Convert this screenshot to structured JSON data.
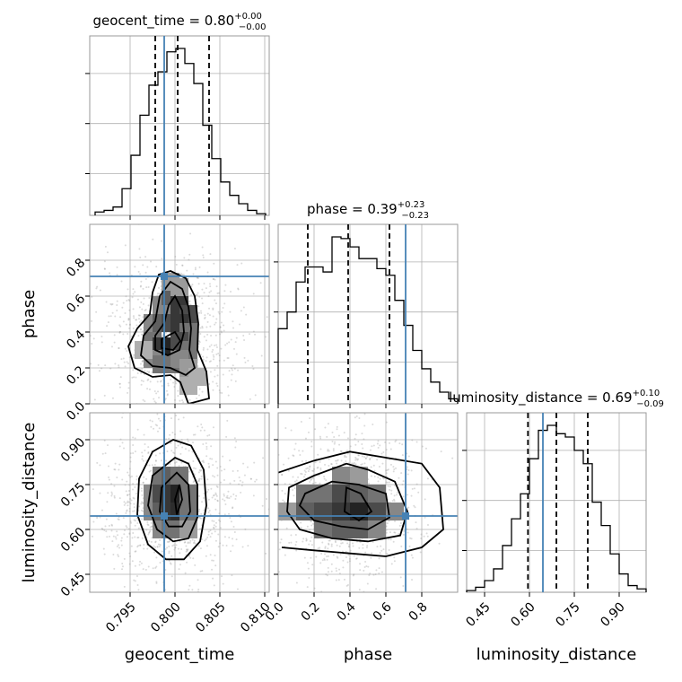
{
  "colors": {
    "truth": "#4682b4",
    "hist": "#000000",
    "grid": "#b0b0b0",
    "scatter": "#999999"
  },
  "chart_data": {
    "type": "corner",
    "parameters": [
      "geocent_time",
      "phase",
      "luminosity_distance"
    ],
    "truths": {
      "geocent_time": 0.7988,
      "phase": 0.71,
      "luminosity_distance": 0.645
    },
    "axes": {
      "geocent_time": {
        "range": [
          0.7905,
          0.8105
        ],
        "ticks": [
          0.795,
          0.8,
          0.805,
          0.81
        ],
        "tick_labels": [
          "0.795",
          "0.800",
          "0.805",
          "0.810"
        ]
      },
      "phase": {
        "range": [
          0.0,
          1.0
        ],
        "ticks": [
          0.0,
          0.2,
          0.4,
          0.6,
          0.8
        ],
        "tick_labels": [
          "0.0",
          "0.2",
          "0.4",
          "0.6",
          "0.8"
        ]
      },
      "luminosity_distance": {
        "range": [
          0.39,
          0.99
        ],
        "ticks": [
          0.45,
          0.6,
          0.75,
          0.9
        ],
        "tick_labels": [
          "0.45",
          "0.60",
          "0.75",
          "0.90"
        ]
      }
    },
    "diagonal": [
      {
        "param": "geocent_time",
        "title_main": "geocent_time = 0.80",
        "title_sup": "+0.00",
        "title_sub": "−0.00",
        "quantiles": [
          0.7978,
          0.8003,
          0.8038
        ],
        "bin_edges": [
          0.7911,
          0.7921,
          0.7931,
          0.7941,
          0.7951,
          0.7961,
          0.7971,
          0.7981,
          0.7991,
          0.8001,
          0.8011,
          0.8021,
          0.8031,
          0.8041,
          0.8051,
          0.8061,
          0.8071,
          0.8081,
          0.8091,
          0.8101
        ],
        "counts": [
          0.02,
          0.03,
          0.05,
          0.16,
          0.36,
          0.6,
          0.78,
          0.86,
          0.98,
          1.0,
          0.91,
          0.79,
          0.54,
          0.34,
          0.2,
          0.12,
          0.07,
          0.03,
          0.01
        ]
      },
      {
        "param": "phase",
        "title_main": "phase = 0.39",
        "title_sup": "+0.23",
        "title_sub": "−0.23",
        "quantiles": [
          0.165,
          0.39,
          0.62
        ],
        "bin_edges": [
          0.0,
          0.05,
          0.1,
          0.15,
          0.2,
          0.25,
          0.3,
          0.35,
          0.4,
          0.45,
          0.5,
          0.55,
          0.6,
          0.65,
          0.7,
          0.75,
          0.8,
          0.85,
          0.9,
          0.95,
          1.0
        ],
        "counts": [
          0.45,
          0.55,
          0.73,
          0.82,
          0.82,
          0.79,
          1.0,
          0.99,
          0.94,
          0.87,
          0.87,
          0.81,
          0.77,
          0.62,
          0.47,
          0.32,
          0.21,
          0.13,
          0.07,
          0.03
        ]
      },
      {
        "param": "luminosity_distance",
        "title_main": "luminosity_distance = 0.69",
        "title_sup": "+0.10",
        "title_sub": "−0.09",
        "quantiles": [
          0.595,
          0.69,
          0.795
        ],
        "bin_edges": [
          0.39,
          0.42,
          0.45,
          0.48,
          0.51,
          0.54,
          0.57,
          0.6,
          0.63,
          0.66,
          0.69,
          0.72,
          0.75,
          0.78,
          0.81,
          0.84,
          0.87,
          0.9,
          0.93,
          0.96,
          0.99
        ],
        "counts": [
          0.01,
          0.03,
          0.07,
          0.14,
          0.28,
          0.44,
          0.59,
          0.8,
          0.97,
          1.0,
          0.95,
          0.93,
          0.85,
          0.77,
          0.54,
          0.4,
          0.23,
          0.11,
          0.04,
          0.02
        ]
      }
    ],
    "pairs": [
      {
        "x_param": "geocent_time",
        "y_param": "phase",
        "density_cells": [
          [
            0.7985,
            0.55,
            0.5
          ],
          [
            0.7995,
            0.6,
            0.7
          ],
          [
            0.8005,
            0.55,
            0.9
          ],
          [
            0.8015,
            0.5,
            0.8
          ],
          [
            0.7975,
            0.45,
            0.5
          ],
          [
            0.7985,
            0.45,
            0.7
          ],
          [
            0.7995,
            0.45,
            0.8
          ],
          [
            0.8005,
            0.45,
            0.9
          ],
          [
            0.8015,
            0.4,
            0.6
          ],
          [
            0.7975,
            0.35,
            0.6
          ],
          [
            0.7985,
            0.32,
            0.9
          ],
          [
            0.7995,
            0.32,
            1.0
          ],
          [
            0.8005,
            0.35,
            0.8
          ],
          [
            0.8015,
            0.3,
            0.6
          ],
          [
            0.7975,
            0.25,
            0.5
          ],
          [
            0.7985,
            0.22,
            0.6
          ],
          [
            0.7995,
            0.22,
            0.6
          ],
          [
            0.8005,
            0.25,
            0.5
          ],
          [
            0.8015,
            0.2,
            0.4
          ],
          [
            0.7965,
            0.3,
            0.3
          ],
          [
            0.8025,
            0.15,
            0.3
          ],
          [
            0.8015,
            0.1,
            0.3
          ],
          [
            0.8005,
            0.65,
            0.4
          ],
          [
            0.7995,
            0.68,
            0.4
          ]
        ],
        "contours": [
          [
            [
              0.7995,
              0.74
            ],
            [
              0.8012,
              0.7
            ],
            [
              0.8022,
              0.6
            ],
            [
              0.8026,
              0.45
            ],
            [
              0.8025,
              0.3
            ],
            [
              0.8035,
              0.18
            ],
            [
              0.8038,
              0.03
            ],
            [
              0.8015,
              0.0
            ],
            [
              0.8006,
              0.12
            ],
            [
              0.7995,
              0.16
            ],
            [
              0.7975,
              0.15
            ],
            [
              0.7955,
              0.2
            ],
            [
              0.7948,
              0.32
            ],
            [
              0.7958,
              0.42
            ],
            [
              0.7972,
              0.5
            ],
            [
              0.7975,
              0.62
            ],
            [
              0.7982,
              0.72
            ],
            [
              0.7995,
              0.74
            ]
          ],
          [
            [
              0.7995,
              0.68
            ],
            [
              0.8008,
              0.64
            ],
            [
              0.8015,
              0.54
            ],
            [
              0.8018,
              0.42
            ],
            [
              0.8016,
              0.3
            ],
            [
              0.8022,
              0.2
            ],
            [
              0.8012,
              0.16
            ],
            [
              0.7995,
              0.2
            ],
            [
              0.7975,
              0.21
            ],
            [
              0.7962,
              0.27
            ],
            [
              0.7965,
              0.38
            ],
            [
              0.7978,
              0.46
            ],
            [
              0.7983,
              0.6
            ],
            [
              0.7995,
              0.68
            ]
          ],
          [
            [
              0.8,
              0.6
            ],
            [
              0.8008,
              0.52
            ],
            [
              0.801,
              0.4
            ],
            [
              0.8005,
              0.3
            ],
            [
              0.7992,
              0.27
            ],
            [
              0.7978,
              0.3
            ],
            [
              0.7978,
              0.38
            ],
            [
              0.7988,
              0.45
            ],
            [
              0.7993,
              0.55
            ],
            [
              0.8,
              0.6
            ]
          ],
          [
            [
              0.7985,
              0.36
            ],
            [
              0.8,
              0.4
            ],
            [
              0.8006,
              0.35
            ],
            [
              0.7998,
              0.3
            ],
            [
              0.7985,
              0.31
            ],
            [
              0.7985,
              0.36
            ]
          ]
        ]
      },
      {
        "x_param": "geocent_time",
        "y_param": "luminosity_distance",
        "density_cells": [
          [
            0.7985,
            0.78,
            0.6
          ],
          [
            0.7995,
            0.78,
            0.7
          ],
          [
            0.8005,
            0.78,
            0.6
          ],
          [
            0.7975,
            0.72,
            0.5
          ],
          [
            0.7985,
            0.72,
            0.8
          ],
          [
            0.7995,
            0.72,
            0.9
          ],
          [
            0.8005,
            0.72,
            1.0
          ],
          [
            0.8015,
            0.72,
            0.6
          ],
          [
            0.7975,
            0.66,
            0.5
          ],
          [
            0.7985,
            0.66,
            0.7
          ],
          [
            0.7995,
            0.66,
            0.9
          ],
          [
            0.8005,
            0.66,
            0.95
          ],
          [
            0.8015,
            0.66,
            0.6
          ],
          [
            0.7985,
            0.6,
            0.5
          ],
          [
            0.7995,
            0.6,
            0.6
          ],
          [
            0.8005,
            0.6,
            0.6
          ],
          [
            0.8015,
            0.6,
            0.4
          ]
        ],
        "contours": [
          [
            [
              0.7998,
              0.9
            ],
            [
              0.8018,
              0.88
            ],
            [
              0.8032,
              0.8
            ],
            [
              0.8035,
              0.68
            ],
            [
              0.8028,
              0.56
            ],
            [
              0.801,
              0.5
            ],
            [
              0.799,
              0.5
            ],
            [
              0.797,
              0.55
            ],
            [
              0.7958,
              0.65
            ],
            [
              0.796,
              0.77
            ],
            [
              0.7975,
              0.86
            ],
            [
              0.7998,
              0.9
            ]
          ],
          [
            [
              0.8,
              0.84
            ],
            [
              0.8015,
              0.82
            ],
            [
              0.8025,
              0.75
            ],
            [
              0.8025,
              0.64
            ],
            [
              0.8015,
              0.57
            ],
            [
              0.7998,
              0.56
            ],
            [
              0.798,
              0.6
            ],
            [
              0.797,
              0.68
            ],
            [
              0.7975,
              0.78
            ],
            [
              0.8,
              0.84
            ]
          ],
          [
            [
              0.8002,
              0.79
            ],
            [
              0.8015,
              0.75
            ],
            [
              0.8017,
              0.66
            ],
            [
              0.8008,
              0.61
            ],
            [
              0.7993,
              0.61
            ],
            [
              0.7983,
              0.66
            ],
            [
              0.7985,
              0.74
            ],
            [
              0.8002,
              0.79
            ]
          ],
          [
            [
              0.8005,
              0.75
            ],
            [
              0.8008,
              0.7
            ],
            [
              0.8002,
              0.65
            ],
            [
              0.8,
              0.7
            ],
            [
              0.8005,
              0.75
            ]
          ]
        ]
      },
      {
        "x_param": "phase",
        "y_param": "luminosity_distance",
        "density_cells": [
          [
            0.15,
            0.72,
            0.6
          ],
          [
            0.25,
            0.72,
            0.6
          ],
          [
            0.35,
            0.72,
            0.8
          ],
          [
            0.45,
            0.72,
            0.7
          ],
          [
            0.55,
            0.72,
            0.6
          ],
          [
            0.15,
            0.66,
            0.7
          ],
          [
            0.25,
            0.66,
            0.8
          ],
          [
            0.35,
            0.66,
            0.9
          ],
          [
            0.45,
            0.66,
            1.0
          ],
          [
            0.55,
            0.66,
            0.8
          ],
          [
            0.65,
            0.66,
            0.5
          ],
          [
            0.05,
            0.66,
            0.4
          ],
          [
            0.25,
            0.6,
            0.6
          ],
          [
            0.35,
            0.6,
            0.7
          ],
          [
            0.45,
            0.6,
            0.7
          ],
          [
            0.55,
            0.6,
            0.5
          ],
          [
            0.35,
            0.78,
            0.5
          ],
          [
            0.45,
            0.78,
            0.4
          ]
        ],
        "contours": [
          [
            [
              0.0,
              0.79
            ],
            [
              0.2,
              0.83
            ],
            [
              0.4,
              0.86
            ],
            [
              0.6,
              0.84
            ],
            [
              0.8,
              0.82
            ],
            [
              0.9,
              0.74
            ],
            [
              0.92,
              0.6
            ],
            [
              0.8,
              0.54
            ],
            [
              0.6,
              0.51
            ],
            [
              0.4,
              0.52
            ],
            [
              0.2,
              0.53
            ],
            [
              0.02,
              0.54
            ]
          ],
          [
            [
              0.06,
              0.74
            ],
            [
              0.2,
              0.78
            ],
            [
              0.38,
              0.82
            ],
            [
              0.5,
              0.8
            ],
            [
              0.65,
              0.76
            ],
            [
              0.72,
              0.66
            ],
            [
              0.68,
              0.58
            ],
            [
              0.5,
              0.56
            ],
            [
              0.3,
              0.57
            ],
            [
              0.12,
              0.6
            ],
            [
              0.05,
              0.66
            ],
            [
              0.06,
              0.74
            ]
          ],
          [
            [
              0.15,
              0.72
            ],
            [
              0.3,
              0.76
            ],
            [
              0.45,
              0.75
            ],
            [
              0.6,
              0.72
            ],
            [
              0.62,
              0.64
            ],
            [
              0.5,
              0.6
            ],
            [
              0.35,
              0.61
            ],
            [
              0.2,
              0.63
            ],
            [
              0.12,
              0.68
            ],
            [
              0.15,
              0.72
            ]
          ],
          [
            [
              0.38,
              0.74
            ],
            [
              0.46,
              0.72
            ],
            [
              0.52,
              0.66
            ],
            [
              0.45,
              0.63
            ],
            [
              0.37,
              0.66
            ],
            [
              0.38,
              0.74
            ]
          ]
        ]
      }
    ],
    "grid": true
  }
}
